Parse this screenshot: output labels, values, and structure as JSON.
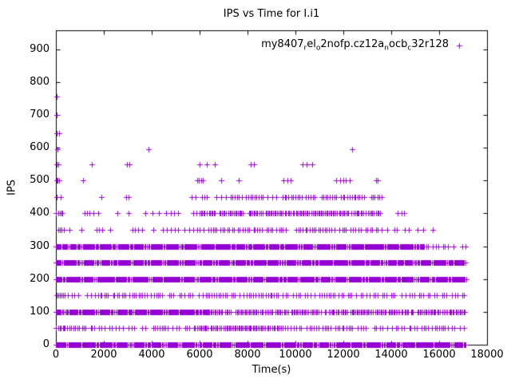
{
  "chart_data": {
    "type": "scatter",
    "title": "IPS vs Time for I.i1",
    "xlabel": "Time(s)",
    "ylabel": "IPS",
    "xlim": [
      0,
      18000
    ],
    "ylim": [
      0,
      958
    ],
    "xticks": [
      0,
      2000,
      4000,
      6000,
      8000,
      10000,
      12000,
      14000,
      16000,
      18000
    ],
    "yticks": [
      0,
      100,
      200,
      300,
      400,
      500,
      600,
      700,
      800,
      900
    ],
    "grid": false,
    "legend_position": "top-right-inside",
    "legend_label": "my8407_rel_o2nofp.cz12a_nocb_c32r128",
    "legend_parts": [
      {
        "t": "my8407"
      },
      {
        "t": "r",
        "sub": true
      },
      {
        "t": "el"
      },
      {
        "t": "o",
        "sub": true
      },
      {
        "t": "2nofp.cz12a"
      },
      {
        "t": "n",
        "sub": true
      },
      {
        "t": "ocb"
      },
      {
        "t": "c",
        "sub": true
      },
      {
        "t": "32r128"
      }
    ],
    "marker_glyph": "+",
    "marker_color": "#9400d3",
    "background_color": "#ffffff",
    "border_color": "#000000",
    "densities": {
      "solid": {
        "step": 35,
        "p": 1.0
      },
      "dense": {
        "step": 55,
        "p": 0.88
      },
      "medium": {
        "step": 90,
        "p": 0.72
      },
      "scatter": {
        "step": 150,
        "p": 0.6
      },
      "sparse": {
        "step": 260,
        "p": 0.5
      }
    },
    "bands": [
      {
        "y": 0,
        "segments": [
          [
            "solid",
            0,
            17120
          ]
        ]
      },
      {
        "y": 50,
        "segments": [
          [
            "dense",
            0,
            450
          ],
          [
            "medium",
            450,
            5800
          ],
          [
            "dense",
            5800,
            9600
          ],
          [
            "medium",
            9600,
            17100
          ]
        ]
      },
      {
        "y": 100,
        "segments": [
          [
            "solid",
            0,
            6400
          ],
          [
            "dense",
            6400,
            17100
          ]
        ]
      },
      {
        "y": 150,
        "segments": [
          [
            "dense",
            0,
            300
          ],
          [
            "medium",
            300,
            17100
          ]
        ]
      },
      {
        "y": 200,
        "segments": [
          [
            "solid",
            0,
            17120
          ]
        ]
      },
      {
        "y": 250,
        "segments": [
          [
            "solid",
            0,
            17120
          ]
        ]
      },
      {
        "y": 300,
        "segments": [
          [
            "solid",
            0,
            15350
          ],
          [
            "medium",
            15350,
            16350
          ]
        ],
        "xs": [
          16600,
          16950,
          17100
        ]
      },
      {
        "y": 350,
        "segments": [
          [
            "dense",
            0,
            300
          ],
          [
            "scatter",
            300,
            5900
          ],
          [
            "medium",
            5900,
            13500
          ],
          [
            "scatter",
            13500,
            15800
          ],
          [
            "sparse",
            15800,
            16300
          ]
        ]
      },
      {
        "y": 400,
        "segments": [
          [
            "dense",
            0,
            300
          ],
          [
            "medium",
            1200,
            1750
          ],
          [
            "scatter",
            2450,
            3350
          ],
          [
            "sparse",
            3500,
            4600
          ],
          [
            "scatter",
            4650,
            5900
          ],
          [
            "dense",
            6000,
            13550
          ],
          [
            "medium",
            14250,
            14520
          ]
        ]
      },
      {
        "y": 450,
        "segments": [
          [
            "medium",
            0,
            260
          ],
          [
            "scatter",
            1800,
            2080
          ],
          [
            "scatter",
            2900,
            3200
          ],
          [
            "medium",
            5550,
            6320
          ],
          [
            "scatter",
            6750,
            7060
          ],
          [
            "medium",
            7300,
            13600
          ]
        ]
      },
      {
        "y": 500,
        "xs": [
          30,
          70,
          120,
          1130,
          5900,
          5980,
          6060,
          6140,
          6900,
          7620,
          9500,
          9650,
          9800,
          11700,
          11850,
          12000,
          12100,
          12250,
          13350,
          13420
        ]
      },
      {
        "y": 550,
        "xs": [
          40,
          90,
          1500,
          2950,
          3050,
          6000,
          6300,
          6620,
          8130,
          8280,
          10300,
          10480,
          10700
        ]
      },
      {
        "y": 595,
        "xs": [
          60,
          3850,
          12350
        ]
      },
      {
        "y": 645,
        "xs": [
          35,
          120
        ]
      },
      {
        "y": 700,
        "xs": [
          30
        ]
      },
      {
        "y": 755,
        "xs": [
          30
        ]
      }
    ]
  }
}
